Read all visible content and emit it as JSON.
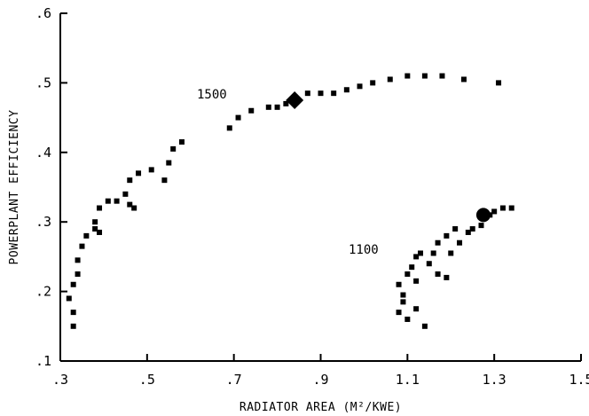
{
  "chart_data": {
    "type": "scatter",
    "title": "",
    "xlabel": "RADIATOR AREA",
    "xlabel_unit": "M²/KWE",
    "ylabel": "POWERPLANT EFFICIENCY",
    "xlim": [
      0.3,
      1.5
    ],
    "ylim": [
      0.1,
      0.6
    ],
    "xticks": [
      ".3",
      ".5",
      ".7",
      ".9",
      "1.1",
      "1.3",
      "1.5"
    ],
    "yticks": [
      ".1",
      ".2",
      ".3",
      ".4",
      ".5",
      ".6"
    ],
    "grid": false,
    "legend": "none",
    "series": [
      {
        "label": "1500",
        "points": [
          [
            0.33,
            0.15
          ],
          [
            0.33,
            0.17
          ],
          [
            0.32,
            0.19
          ],
          [
            0.33,
            0.21
          ],
          [
            0.34,
            0.225
          ],
          [
            0.34,
            0.245
          ],
          [
            0.35,
            0.265
          ],
          [
            0.36,
            0.28
          ],
          [
            0.38,
            0.29
          ],
          [
            0.39,
            0.285
          ],
          [
            0.38,
            0.3
          ],
          [
            0.39,
            0.32
          ],
          [
            0.41,
            0.33
          ],
          [
            0.43,
            0.33
          ],
          [
            0.46,
            0.325
          ],
          [
            0.47,
            0.32
          ],
          [
            0.45,
            0.34
          ],
          [
            0.46,
            0.36
          ],
          [
            0.48,
            0.37
          ],
          [
            0.51,
            0.375
          ],
          [
            0.54,
            0.36
          ],
          [
            0.55,
            0.385
          ],
          [
            0.56,
            0.405
          ],
          [
            0.58,
            0.415
          ],
          [
            0.69,
            0.435
          ],
          [
            0.71,
            0.45
          ],
          [
            0.74,
            0.46
          ],
          [
            0.78,
            0.465
          ],
          [
            0.8,
            0.465
          ],
          [
            0.82,
            0.47
          ],
          [
            0.84,
            0.48
          ],
          [
            0.87,
            0.485
          ],
          [
            0.9,
            0.485
          ],
          [
            0.93,
            0.485
          ],
          [
            0.96,
            0.49
          ],
          [
            0.99,
            0.495
          ],
          [
            1.02,
            0.5
          ],
          [
            1.06,
            0.505
          ],
          [
            1.1,
            0.51
          ],
          [
            1.14,
            0.51
          ],
          [
            1.18,
            0.51
          ],
          [
            1.23,
            0.505
          ],
          [
            1.31,
            0.5
          ]
        ],
        "marker": {
          "x": 0.84,
          "y": 0.475,
          "shape": "diamond"
        }
      },
      {
        "label": "1100",
        "points": [
          [
            1.14,
            0.15
          ],
          [
            1.1,
            0.16
          ],
          [
            1.08,
            0.17
          ],
          [
            1.09,
            0.185
          ],
          [
            1.12,
            0.175
          ],
          [
            1.09,
            0.195
          ],
          [
            1.08,
            0.21
          ],
          [
            1.1,
            0.225
          ],
          [
            1.12,
            0.215
          ],
          [
            1.11,
            0.235
          ],
          [
            1.12,
            0.25
          ],
          [
            1.13,
            0.255
          ],
          [
            1.15,
            0.24
          ],
          [
            1.17,
            0.225
          ],
          [
            1.19,
            0.22
          ],
          [
            1.16,
            0.255
          ],
          [
            1.17,
            0.27
          ],
          [
            1.19,
            0.28
          ],
          [
            1.21,
            0.29
          ],
          [
            1.2,
            0.255
          ],
          [
            1.22,
            0.27
          ],
          [
            1.24,
            0.285
          ],
          [
            1.25,
            0.29
          ],
          [
            1.27,
            0.295
          ],
          [
            1.29,
            0.31
          ],
          [
            1.3,
            0.315
          ],
          [
            1.32,
            0.32
          ],
          [
            1.34,
            0.32
          ]
        ],
        "marker": {
          "x": 1.275,
          "y": 0.31,
          "shape": "circle"
        }
      }
    ]
  }
}
